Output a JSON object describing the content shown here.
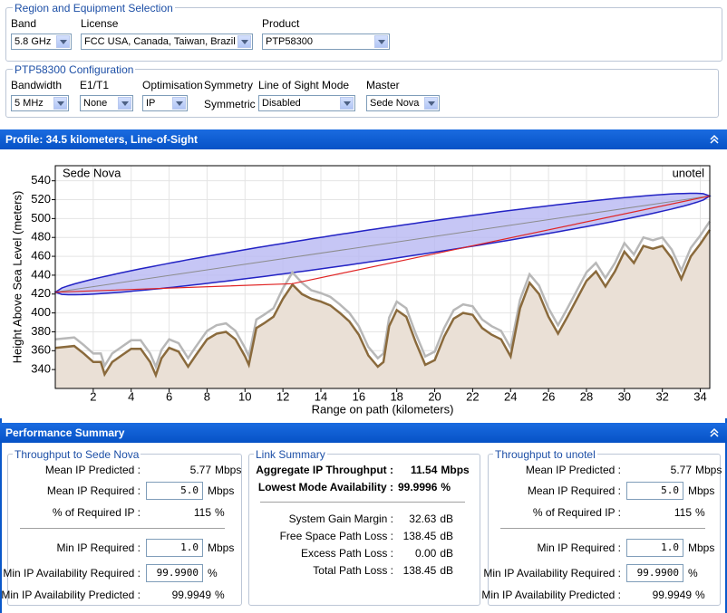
{
  "region": {
    "title": "Region and Equipment Selection",
    "fields": [
      {
        "label": "Band",
        "value": "5.8 GHz"
      },
      {
        "label": "License",
        "value": "FCC USA, Canada, Taiwan, Brazil"
      },
      {
        "label": "Product",
        "value": "PTP58300"
      }
    ]
  },
  "config": {
    "title": "PTP58300 Configuration",
    "fields": [
      {
        "label": "Bandwidth",
        "value": "5 MHz",
        "select": true
      },
      {
        "label": "E1/T1",
        "value": "None",
        "select": true
      },
      {
        "label": "Optimisation",
        "value": "IP",
        "select": true
      },
      {
        "label": "Symmetry",
        "value": "Symmetric",
        "select": false
      },
      {
        "label": "Line of Sight Mode",
        "value": "Disabled",
        "select": true
      },
      {
        "label": "Master",
        "value": "Sede Nova",
        "select": true
      }
    ]
  },
  "profile": {
    "title": "Profile: 34.5 kilometers, Line-of-Sight"
  },
  "chart_data": {
    "type": "line",
    "xlabel": "Range on path (kilometers)",
    "ylabel": "Height Above Sea Level (meters)",
    "left_label": "Sede Nova",
    "right_label": "unotel",
    "xlim": [
      0,
      34.5
    ],
    "ylim": [
      320,
      556
    ],
    "xticks": [
      2,
      4,
      6,
      8,
      10,
      12,
      14,
      16,
      18,
      20,
      22,
      24,
      26,
      28,
      30,
      32,
      34
    ],
    "yticks": [
      340,
      360,
      380,
      400,
      420,
      440,
      460,
      480,
      500,
      520,
      540
    ],
    "grid": true,
    "x": [
      0,
      1,
      1.5,
      2,
      2.4,
      2.6,
      3,
      3.5,
      4,
      4.5,
      5,
      5.3,
      5.6,
      6,
      6.5,
      7,
      7.4,
      8,
      8.5,
      9,
      9.5,
      10,
      10.2,
      10.6,
      11,
      11.5,
      12,
      12.5,
      13,
      13.5,
      14,
      14.5,
      15,
      15.5,
      16,
      16.5,
      17,
      17.3,
      17.6,
      18,
      18.5,
      19,
      19.5,
      20,
      20.5,
      21,
      21.5,
      22,
      22.5,
      23,
      23.5,
      24,
      24.5,
      25,
      25.5,
      26,
      26.5,
      27,
      27.5,
      28,
      28.5,
      29,
      29.5,
      30,
      30.5,
      31,
      31.5,
      32,
      32.5,
      33,
      33.5,
      34,
      34.5
    ],
    "series": [
      {
        "color": "#b8b8b8",
        "values": [
          372,
          374,
          366,
          357,
          357,
          344,
          357,
          364,
          371,
          371,
          357,
          343,
          361,
          372,
          368,
          352,
          364,
          381,
          387,
          389,
          381,
          363,
          354,
          393,
          398,
          405,
          426,
          443,
          432,
          424,
          421,
          417,
          409,
          400,
          386,
          364,
          352,
          357,
          395,
          412,
          405,
          378,
          354,
          359,
          384,
          403,
          409,
          407,
          393,
          386,
          381,
          363,
          414,
          441,
          429,
          405,
          387,
          405,
          424,
          443,
          453,
          437,
          453,
          474,
          462,
          480,
          477,
          480,
          467,
          445,
          469,
          482,
          497
        ]
      },
      {
        "color": "#8a6a3c",
        "fill": "#eae0d6",
        "values": [
          363,
          365,
          357,
          348,
          348,
          335,
          348,
          355,
          362,
          362,
          348,
          334,
          352,
          363,
          359,
          343,
          355,
          372,
          378,
          380,
          372,
          354,
          345,
          384,
          389,
          396,
          415,
          430,
          420,
          415,
          412,
          408,
          400,
          391,
          377,
          355,
          343,
          348,
          386,
          403,
          396,
          369,
          345,
          350,
          375,
          394,
          400,
          398,
          384,
          377,
          372,
          354,
          405,
          432,
          420,
          396,
          378,
          396,
          415,
          434,
          444,
          428,
          444,
          465,
          453,
          471,
          468,
          471,
          458,
          436,
          460,
          473,
          488
        ]
      }
    ],
    "fresnel": {
      "radius": 17,
      "color": "#2323c4",
      "fill": "#b8b8f2"
    },
    "los": {
      "x": [
        0,
        34.5
      ],
      "values": [
        422,
        524
      ],
      "color": "#8c8c8c"
    },
    "path": {
      "x": [
        0,
        12.5,
        34.5
      ],
      "values": [
        422,
        431,
        524
      ],
      "color": "#e02424"
    }
  },
  "summary": {
    "title": "Performance Summary",
    "left": {
      "title": "Throughput to Sede Nova",
      "rows": [
        {
          "label": "Mean IP Predicted :",
          "value": "5.77",
          "unit": "Mbps"
        },
        {
          "label": "Mean IP Required :",
          "value": "5.0",
          "unit": "Mbps",
          "input": true
        },
        {
          "label": "% of Required IP :",
          "value": "115",
          "unit": "%"
        },
        {
          "label": "Min IP Required :",
          "value": "1.0",
          "unit": "Mbps",
          "input": true
        },
        {
          "label": "Min IP Availability Required :",
          "value": "99.9900",
          "unit": "%",
          "input": true
        },
        {
          "label": "Min IP Availability Predicted :",
          "value": "99.9949",
          "unit": "%"
        }
      ]
    },
    "link": {
      "title": "Link Summary",
      "rows": [
        {
          "label": "Aggregate IP Throughput :",
          "value": "11.54",
          "unit": "Mbps",
          "bold": true
        },
        {
          "label": "Lowest Mode Availability :",
          "value": "99.9996",
          "unit": "%",
          "bold": true
        },
        {
          "label": "System Gain Margin :",
          "value": "32.63",
          "unit": "dB"
        },
        {
          "label": "Free Space Path Loss :",
          "value": "138.45",
          "unit": "dB"
        },
        {
          "label": "Excess Path Loss :",
          "value": "0.00",
          "unit": "dB"
        },
        {
          "label": "Total Path Loss :",
          "value": "138.45",
          "unit": "dB"
        }
      ]
    },
    "right": {
      "title": "Throughput to unotel",
      "rows": [
        {
          "label": "Mean IP Predicted :",
          "value": "5.77",
          "unit": "Mbps"
        },
        {
          "label": "Mean IP Required :",
          "value": "5.0",
          "unit": "Mbps",
          "input": true
        },
        {
          "label": "% of Required IP :",
          "value": "115",
          "unit": "%"
        },
        {
          "label": "Min IP Required :",
          "value": "1.0",
          "unit": "Mbps",
          "input": true
        },
        {
          "label": "Min IP Availability Required :",
          "value": "99.9900",
          "unit": "%",
          "input": true
        },
        {
          "label": "Min IP Availability Predicted :",
          "value": "99.9949",
          "unit": "%"
        }
      ]
    }
  }
}
